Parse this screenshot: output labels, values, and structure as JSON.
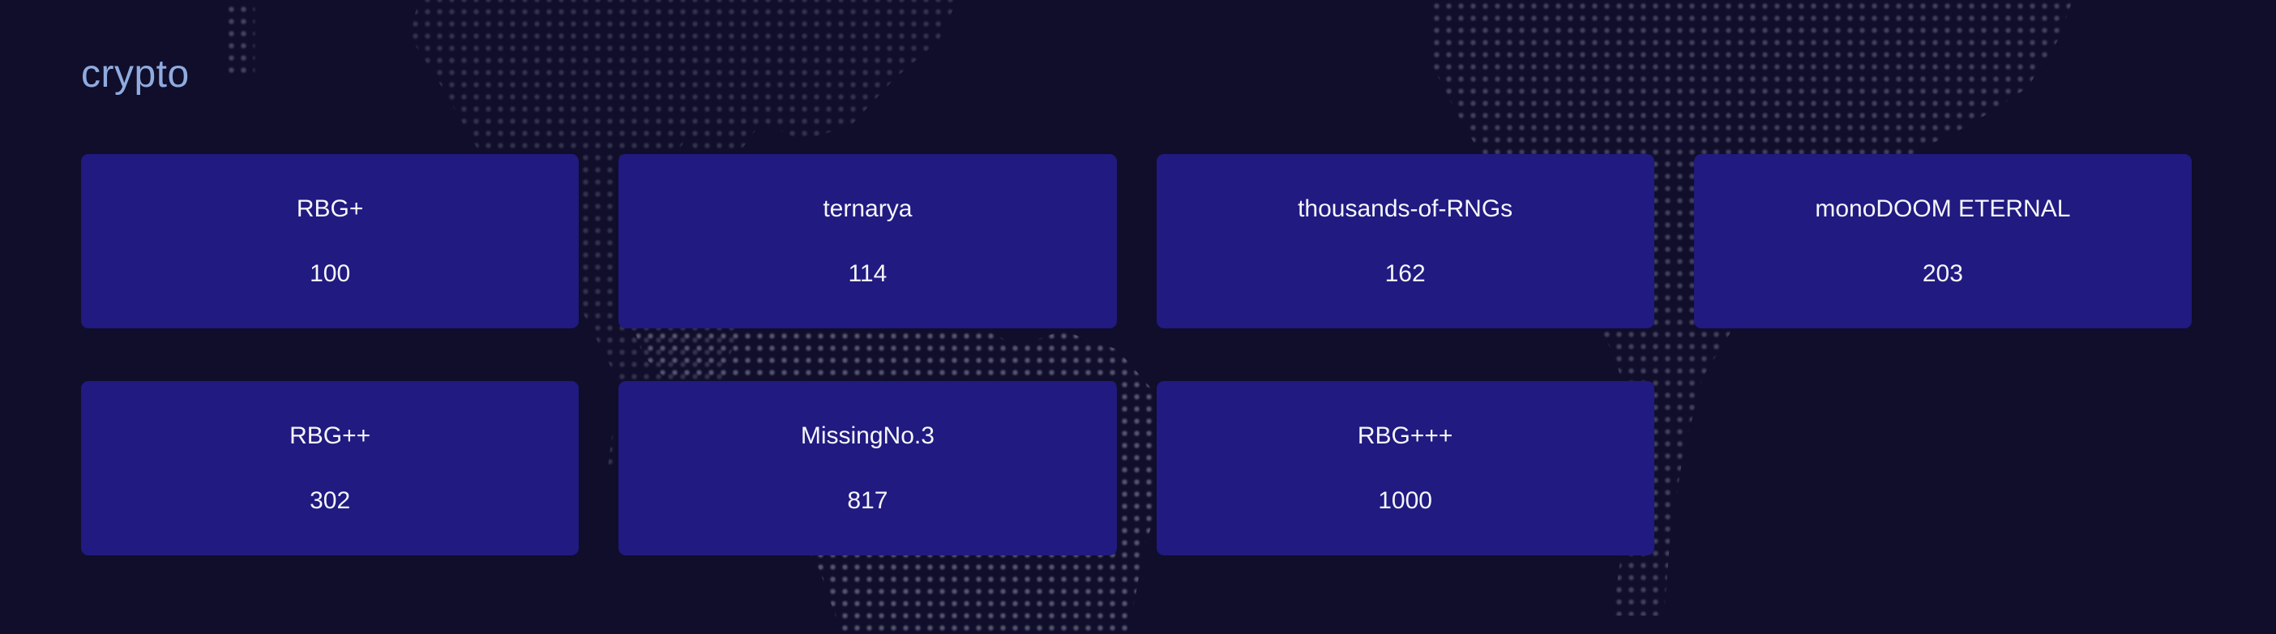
{
  "page": {
    "title": "crypto"
  },
  "theme": {
    "background": "#100e2a",
    "card_background": "#211a80",
    "title_color": "#8fabdf",
    "card_text_color": "#f5f6fb",
    "map_dot_color": "#b9bcd6"
  },
  "cards": [
    {
      "name": "RBG+",
      "value": "100"
    },
    {
      "name": "ternarya",
      "value": "114"
    },
    {
      "name": "thousands-of-RNGs",
      "value": "162"
    },
    {
      "name": "monoDOOM ETERNAL",
      "value": "203"
    },
    {
      "name": "RBG++",
      "value": "302"
    },
    {
      "name": "MissingNo.3",
      "value": "817"
    },
    {
      "name": "RBG+++",
      "value": "1000"
    }
  ]
}
